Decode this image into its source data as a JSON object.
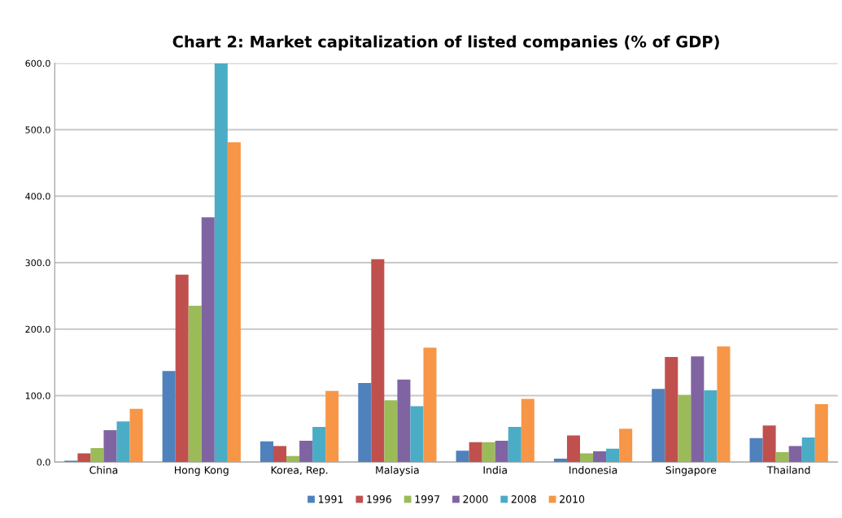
{
  "chart_data": {
    "type": "bar",
    "title": "Chart 2: Market capitalization of listed companies (% of GDP)",
    "categories": [
      "China",
      "Hong Kong",
      "Korea, Rep.",
      "Malaysia",
      "India",
      "Indonesia",
      "Singapore",
      "Thailand"
    ],
    "series": [
      {
        "name": "1991",
        "color": "#4f81bd",
        "values": [
          2,
          137,
          31,
          119,
          17,
          5,
          110,
          36
        ]
      },
      {
        "name": "1996",
        "color": "#c0504d",
        "values": [
          13,
          282,
          24,
          305,
          30,
          40,
          158,
          55
        ]
      },
      {
        "name": "1997",
        "color": "#9bbb59",
        "values": [
          21,
          235,
          9,
          93,
          30,
          13,
          101,
          15
        ]
      },
      {
        "name": "2000",
        "color": "#8064a2",
        "values": [
          48,
          368,
          32,
          124,
          32,
          16,
          159,
          24
        ]
      },
      {
        "name": "2008",
        "color": "#4bacc6",
        "values": [
          61,
          600,
          53,
          84,
          53,
          20,
          108,
          37
        ]
      },
      {
        "name": "2010",
        "color": "#f79646",
        "values": [
          80,
          481,
          107,
          172,
          95,
          50,
          174,
          87
        ]
      }
    ],
    "ylim": [
      0,
      600
    ],
    "yticks": [
      {
        "value": 0,
        "label": "0.0"
      },
      {
        "value": 100,
        "label": "100.0"
      },
      {
        "value": 200,
        "label": "200.0"
      },
      {
        "value": 300,
        "label": "300.0"
      },
      {
        "value": 400,
        "label": "400.0"
      },
      {
        "value": 500,
        "label": "500.0"
      },
      {
        "value": 600,
        "label": "600.0"
      }
    ],
    "grid": "y",
    "legend": "bottom"
  }
}
